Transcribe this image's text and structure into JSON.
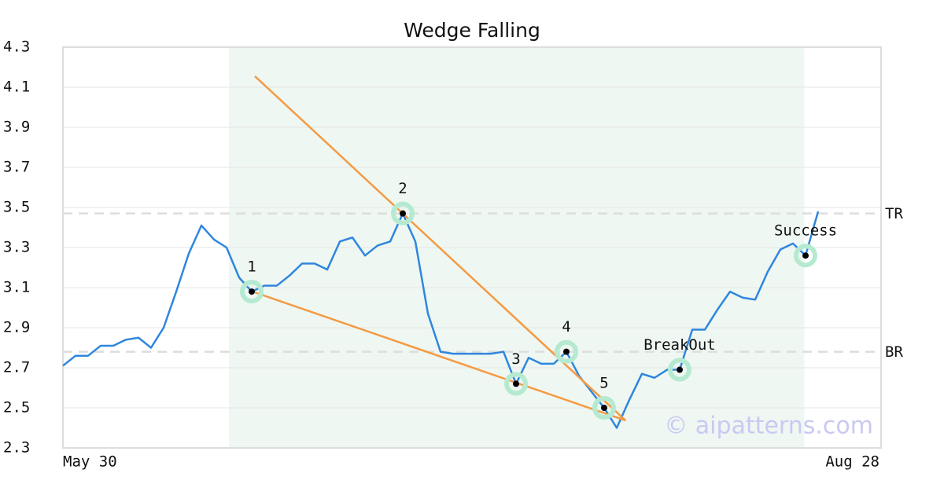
{
  "chart_data": {
    "type": "line",
    "title": "Wedge Falling",
    "x": [
      0,
      1,
      2,
      3,
      4,
      5,
      6,
      7,
      8,
      9,
      10,
      11,
      12,
      13,
      14,
      15,
      16,
      17,
      18,
      19,
      20,
      21,
      22,
      23,
      24,
      25,
      26,
      27,
      28,
      29,
      30,
      31,
      32,
      33,
      34,
      35,
      36,
      37,
      38,
      39,
      40,
      41,
      42,
      43,
      44,
      45,
      46,
      47,
      48,
      49,
      50,
      51,
      52,
      53,
      54,
      55,
      56,
      57,
      58,
      59,
      60
    ],
    "series": [
      {
        "color": "#2f86de",
        "values": [
          2.71,
          2.76,
          2.76,
          2.81,
          2.81,
          2.84,
          2.85,
          2.8,
          2.9,
          3.08,
          3.27,
          3.41,
          3.34,
          3.3,
          3.15,
          3.08,
          3.11,
          3.11,
          3.16,
          3.22,
          3.22,
          3.19,
          3.33,
          3.35,
          3.26,
          3.31,
          3.33,
          3.47,
          3.33,
          2.97,
          2.78,
          2.77,
          2.77,
          2.77,
          2.77,
          2.78,
          2.62,
          2.75,
          2.72,
          2.72,
          2.78,
          2.66,
          2.58,
          2.5,
          2.4,
          2.54,
          2.67,
          2.65,
          2.69,
          2.69,
          2.89,
          2.89,
          2.99,
          3.08,
          3.05,
          3.04,
          3.18,
          3.29,
          3.32,
          3.26,
          3.48
        ]
      }
    ],
    "xlim": [
      0,
      65
    ],
    "xticks": [
      {
        "value": 0,
        "label": "May 30"
      },
      {
        "value": 65,
        "label": "Aug 28"
      }
    ],
    "ylim": [
      2.3,
      4.3
    ],
    "yticks": [
      2.3,
      2.5,
      2.7,
      2.9,
      3.1,
      3.3,
      3.5,
      3.7,
      3.9,
      4.1,
      4.3
    ],
    "grid": true,
    "highlight_x": [
      13.2,
      58.9
    ],
    "markers": [
      {
        "label": "1",
        "x": 15,
        "y": 3.08
      },
      {
        "label": "2",
        "x": 27,
        "y": 3.47
      },
      {
        "label": "3",
        "x": 36,
        "y": 2.62
      },
      {
        "label": "4",
        "x": 40,
        "y": 2.78
      },
      {
        "label": "5",
        "x": 43,
        "y": 2.5
      },
      {
        "label": "BreakOut",
        "x": 49,
        "y": 2.69
      },
      {
        "label": "Success",
        "x": 59,
        "y": 3.26
      }
    ],
    "trend_lines": [
      {
        "color": "#f59a42",
        "x": [
          15.25,
          44.7
        ],
        "y": [
          4.155,
          2.437
        ]
      },
      {
        "color": "#f59a42",
        "x": [
          15.25,
          44.7
        ],
        "y": [
          3.076,
          2.437
        ]
      }
    ],
    "levels": [
      {
        "label": "TR",
        "value": 3.47
      },
      {
        "label": "BR",
        "value": 2.78
      }
    ],
    "watermark": "© aipatterns.com"
  }
}
